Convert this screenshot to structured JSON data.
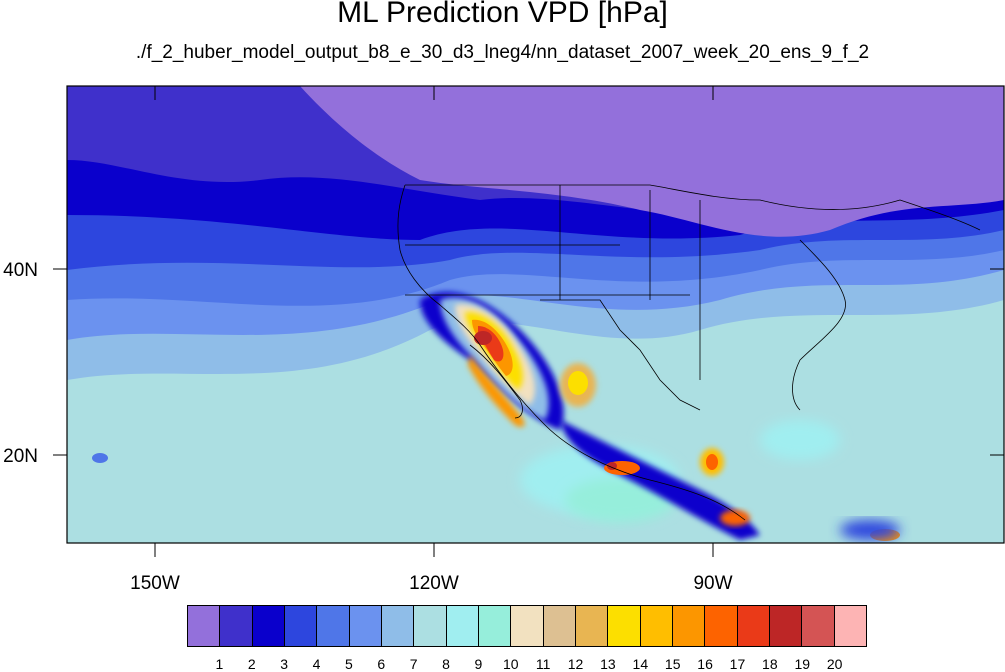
{
  "title": "ML Prediction VPD [hPa]",
  "subtitle": "./f_2_huber_model_output_b8_e_30_d3_lneg4/nn_dataset_2007_week_20_ens_9_f_2",
  "map": {
    "lon_labels": [
      "150W",
      "120W",
      "90W"
    ],
    "lat_labels": [
      "40N",
      "20N"
    ],
    "lon_range": [
      -160,
      -60
    ],
    "lat_range": [
      10,
      59
    ]
  },
  "colorbar": {
    "colors": [
      "#9370db",
      "#3f30cb",
      "#0a00cc",
      "#2d46de",
      "#4f76e8",
      "#6b92ef",
      "#8fbde8",
      "#acdfe2",
      "#a0eef0",
      "#96eedb",
      "#f2e1c0",
      "#ddc092",
      "#e8b552",
      "#fcdf00",
      "#ffbe00",
      "#fc9600",
      "#fd6300",
      "#ea3a18",
      "#bd2626",
      "#d45454",
      "#fdb4b4"
    ],
    "labels": [
      "1",
      "2",
      "3",
      "4",
      "5",
      "6",
      "7",
      "8",
      "9",
      "10",
      "11",
      "12",
      "13",
      "14",
      "15",
      "16",
      "17",
      "18",
      "19",
      "20"
    ]
  }
}
